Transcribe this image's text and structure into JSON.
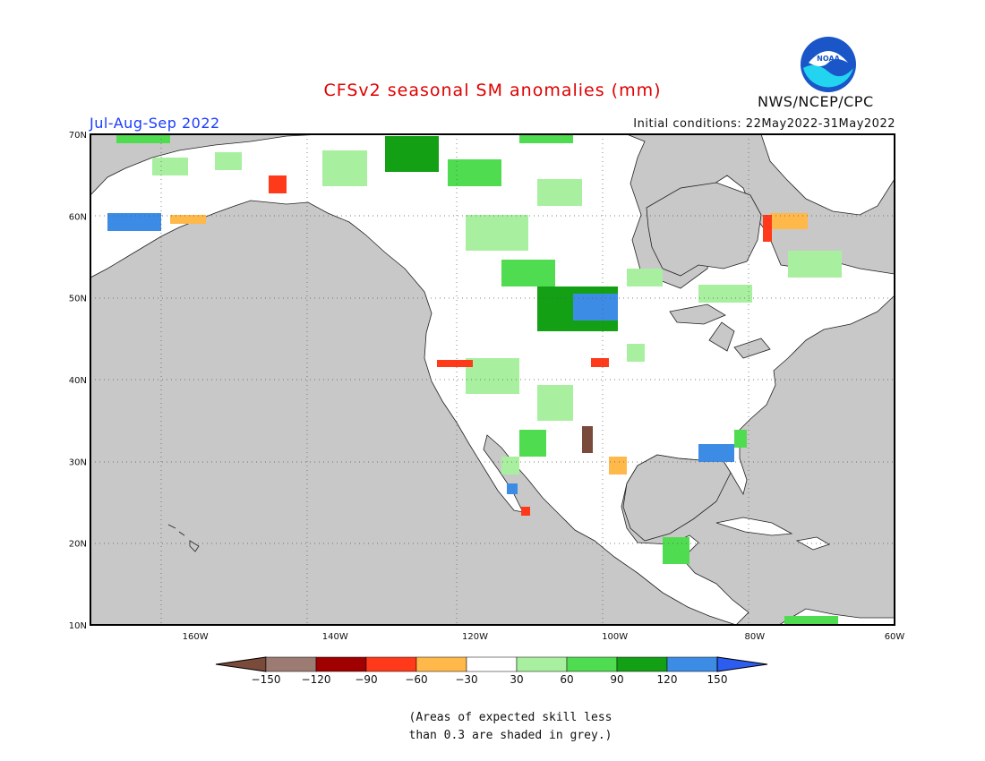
{
  "title": "CFSv2 seasonal SM anomalies (mm)",
  "agency": "NWS/NCEP/CPC",
  "season": "Jul-Aug-Sep 2022",
  "initial_conditions": "Initial conditions: 22May2022-31May2022",
  "logo_text": "NOAA",
  "note_line1": "(Areas of expected skill less",
  "note_line2": "than 0.3 are shaded in grey.)",
  "map": {
    "lon_range": [
      -175,
      -60
    ],
    "lat_range": [
      10,
      70
    ],
    "lat_ticks": [
      {
        "value": 70,
        "label": "70N"
      },
      {
        "value": 60,
        "label": "60N"
      },
      {
        "value": 50,
        "label": "50N"
      },
      {
        "value": 40,
        "label": "40N"
      },
      {
        "value": 30,
        "label": "30N"
      },
      {
        "value": 20,
        "label": "20N"
      },
      {
        "value": 10,
        "label": "10N"
      }
    ],
    "lon_ticks": [
      {
        "value": -160,
        "label": "160W"
      },
      {
        "value": -140,
        "label": "140W"
      },
      {
        "value": -120,
        "label": "120W"
      },
      {
        "value": -100,
        "label": "100W"
      },
      {
        "value": -80,
        "label": "80W"
      },
      {
        "value": -60,
        "label": "60W"
      }
    ],
    "ocean_color": "#c8c8c8",
    "land_color": "#ffffff"
  },
  "colorbar": {
    "labels": [
      "-150",
      "-120",
      "-90",
      "-60",
      "-30",
      "30",
      "60",
      "90",
      "120",
      "150"
    ],
    "colors": [
      "#7a4a3a",
      "#9c7b73",
      "#a00000",
      "#ff3a1a",
      "#ffb84a",
      "#ffffff",
      "#a8f0a0",
      "#50dc50",
      "#14a014",
      "#3c8ce6",
      "#2c5cf0"
    ]
  }
}
